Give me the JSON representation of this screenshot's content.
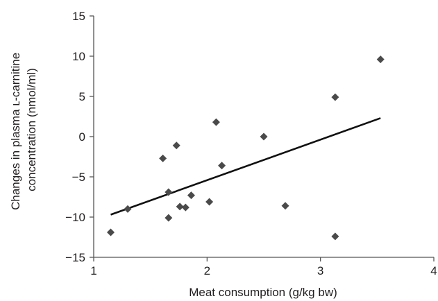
{
  "chart_data": {
    "type": "scatter",
    "title": "",
    "xlabel": "Meat consumption (g/kg bw)",
    "ylabel_line1": "Changes in plasma ʟ-carnitine",
    "ylabel_line2": "concentration (nmol/ml)",
    "xlim": [
      1,
      4
    ],
    "ylim": [
      -15,
      15
    ],
    "x_ticks": [
      1,
      2,
      3,
      4
    ],
    "y_ticks": [
      15,
      10,
      5,
      0,
      -5,
      -10,
      -15
    ],
    "grid": false,
    "legend": "none",
    "marker": "diamond",
    "marker_color": "#4a4a4a",
    "line_color": "#111111",
    "axis_color": "#555555",
    "points": [
      {
        "x": 1.15,
        "y": -11.9
      },
      {
        "x": 1.3,
        "y": -9.0
      },
      {
        "x": 1.61,
        "y": -2.7
      },
      {
        "x": 1.66,
        "y": -6.9
      },
      {
        "x": 1.66,
        "y": -10.1
      },
      {
        "x": 1.73,
        "y": -1.1
      },
      {
        "x": 1.76,
        "y": -8.7
      },
      {
        "x": 1.81,
        "y": -8.8
      },
      {
        "x": 1.86,
        "y": -7.3
      },
      {
        "x": 2.02,
        "y": -8.1
      },
      {
        "x": 2.08,
        "y": 1.8
      },
      {
        "x": 2.13,
        "y": -3.6
      },
      {
        "x": 2.5,
        "y": 0.0
      },
      {
        "x": 2.69,
        "y": -8.6
      },
      {
        "x": 3.13,
        "y": 4.9
      },
      {
        "x": 3.13,
        "y": -12.4
      },
      {
        "x": 3.53,
        "y": 9.6
      }
    ],
    "trendline": {
      "x": [
        1.15,
        3.53
      ],
      "y": [
        -9.7,
        2.3
      ]
    }
  }
}
